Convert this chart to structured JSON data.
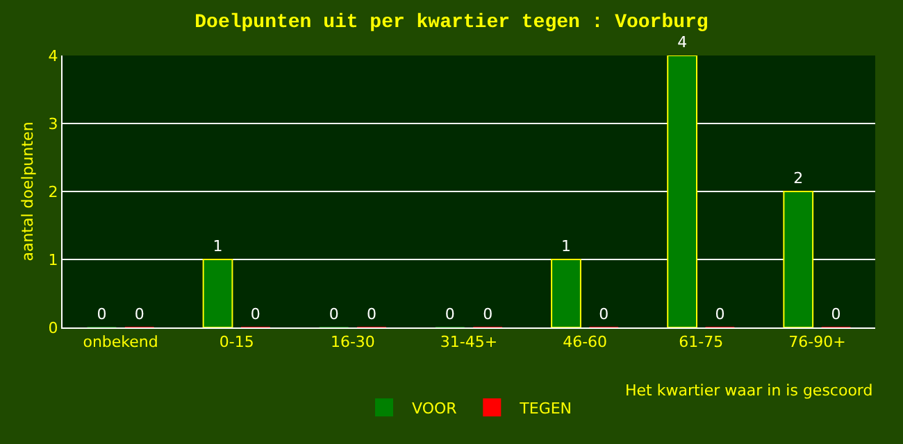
{
  "chart_data": {
    "type": "bar",
    "title": "Doelpunten uit per kwartier tegen : Voorburg",
    "xlabel": "Het kwartier waar in is gescoord",
    "ylabel": "aantal doelpunten",
    "categories": [
      "onbekend",
      "0-15",
      "16-30",
      "31-45+",
      "46-60",
      "61-75",
      "76-90+"
    ],
    "series": [
      {
        "name": "VOOR",
        "color": "#008000",
        "values": [
          0,
          1,
          0,
          0,
          1,
          4,
          2
        ]
      },
      {
        "name": "TEGEN",
        "color": "#ff0000",
        "values": [
          0,
          0,
          0,
          0,
          0,
          0,
          0
        ]
      }
    ],
    "ylim": [
      0,
      4
    ],
    "yticks": [
      0,
      1,
      2,
      3,
      4
    ],
    "grid": "y",
    "legend": "bottom",
    "data_labels": true
  }
}
